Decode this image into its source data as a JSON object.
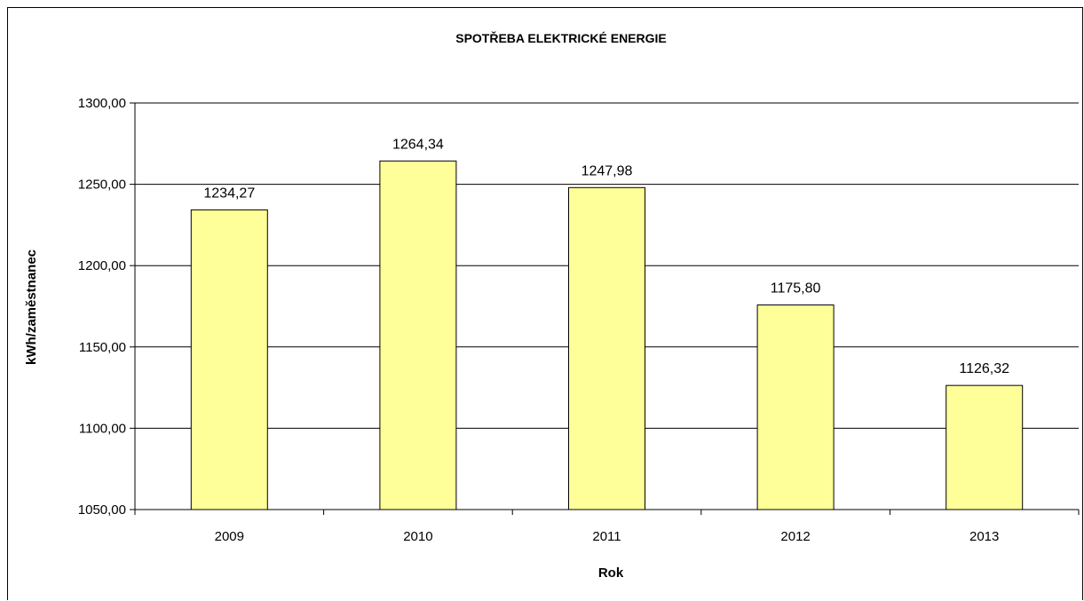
{
  "chart_data": {
    "type": "bar",
    "title": "SPOTŘEBA ELEKTRICKÉ ENERGIE",
    "xlabel": "Rok",
    "ylabel": "kWh/zaměstnanec",
    "categories": [
      "2009",
      "2010",
      "2011",
      "2012",
      "2013"
    ],
    "values": [
      1234.27,
      1264.34,
      1247.98,
      1175.8,
      1126.32
    ],
    "data_labels": [
      "1234,27",
      "1264,34",
      "1247,98",
      "1175,80",
      "1126,32"
    ],
    "ylim": [
      1050,
      1300
    ],
    "yticks": [
      1050,
      1100,
      1150,
      1200,
      1250,
      1300
    ],
    "ytick_labels": [
      "1050,00",
      "1100,00",
      "1150,00",
      "1200,00",
      "1250,00",
      "1300,00"
    ],
    "grid": true,
    "legend": "none",
    "colors": {
      "bar_fill": "#ffff99",
      "bar_stroke": "#000000",
      "grid": "#000000"
    }
  }
}
